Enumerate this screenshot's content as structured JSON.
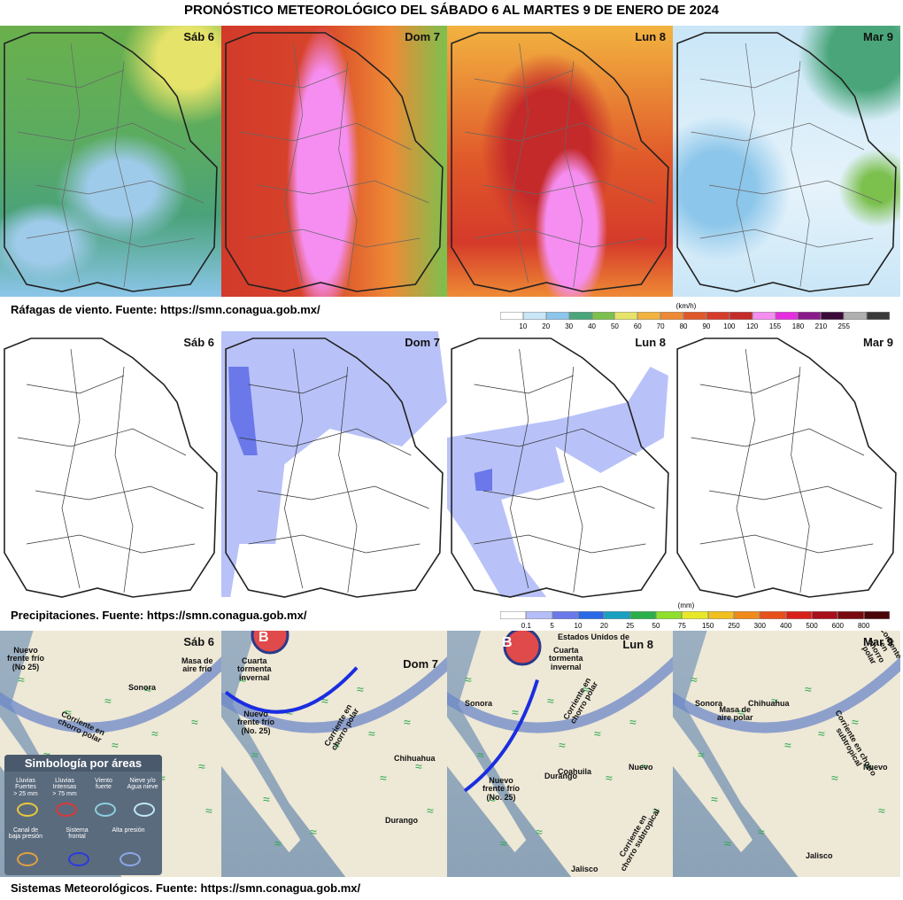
{
  "title": "PRONÓSTICO METEOROLÓGICO DEL SÁBADO 6 AL MARTES 9 DE ENERO DE 2024",
  "rows": [
    {
      "days": [
        "Sáb 6",
        "Dom 7",
        "Lun 8",
        "Mar 9"
      ],
      "caption": "Ráfagas de viento.  Fuente: https://smn.conagua.gob.mx/",
      "scale": {
        "unit": "(km/h)",
        "ticks": [
          10,
          20,
          30,
          40,
          50,
          60,
          70,
          80,
          90,
          100,
          120,
          155,
          180,
          210,
          255
        ],
        "colors": [
          "#ffffff",
          "#c9e6f7",
          "#8cc6ea",
          "#4aa67a",
          "#7cc04e",
          "#e6e36a",
          "#f2b340",
          "#ee8a35",
          "#e0582a",
          "#d53a2a",
          "#c42a2a",
          "#f58ef0",
          "#e62ee0",
          "#8a1a8a",
          "#3a0a3a",
          "#b0b0b0",
          "#3a3a3a"
        ]
      }
    },
    {
      "days": [
        "Sáb 6",
        "Dom 7",
        "Lun 8",
        "Mar 9"
      ],
      "caption": "Precipitaciones.  Fuente: https://smn.conagua.gob.mx/",
      "scale": {
        "unit": "(mm)",
        "ticks": [
          0.1,
          5,
          10,
          20,
          25,
          50,
          75,
          150,
          250,
          300,
          400,
          500,
          600,
          800
        ],
        "colors": [
          "#ffffff",
          "#b4bef8",
          "#6a78ea",
          "#2a6ae6",
          "#1aa0c0",
          "#2ab04a",
          "#8ee02a",
          "#e8e82a",
          "#f0c020",
          "#f08a1a",
          "#e8501a",
          "#d8201a",
          "#a8101a",
          "#780a10",
          "#4a0508"
        ]
      }
    },
    {
      "days": [
        "Sáb 6",
        "Dom 7",
        "Lun 8",
        "Mar 9"
      ],
      "caption": "Sistemas Meteorológicos.    Fuente: https://smn.conagua.gob.mx/",
      "annotations": [
        [
          "Nuevo\nfrente frío\n(No 25)",
          "Masa de\naire frío",
          "Sonora",
          "Corriente en\nchorro polar"
        ],
        [
          "B",
          "Cuarta\ntormenta\ninvernal",
          "Nuevo\nfrente frío\n(No. 25)",
          "Corriente en\nchorro polar",
          "Chihuahua",
          "Durango"
        ],
        [
          "Estados Unidos de",
          "B",
          "Cuarta\ntormenta\ninvernal",
          "Corriente en\nchorro polar",
          "Sonora",
          "Nuevo\nfrente frío\n(No. 25)",
          "Coahuila",
          "Durango",
          "Nuevo",
          "Jalisco",
          "Corriente en\nchorro subtropical"
        ],
        [
          "Masa de\naire polar",
          "Sonora",
          "Chihuahua",
          "Corriente en chorro\nsubtropical",
          "Corriente en\nchorro polar",
          "Nuevo",
          "Jalisco"
        ]
      ],
      "legend": {
        "title": "Simbología por áreas",
        "items": [
          "Lluvias\nFuertes\n> 25 mm",
          "Lluvias\nIntensas\n> 75 mm",
          "Viento\nfuerte",
          "Nieve y/o\nAgua nieve",
          "Canal de\nbaja presión",
          "Sistema\nfrontal",
          "Alta presión"
        ]
      }
    }
  ]
}
